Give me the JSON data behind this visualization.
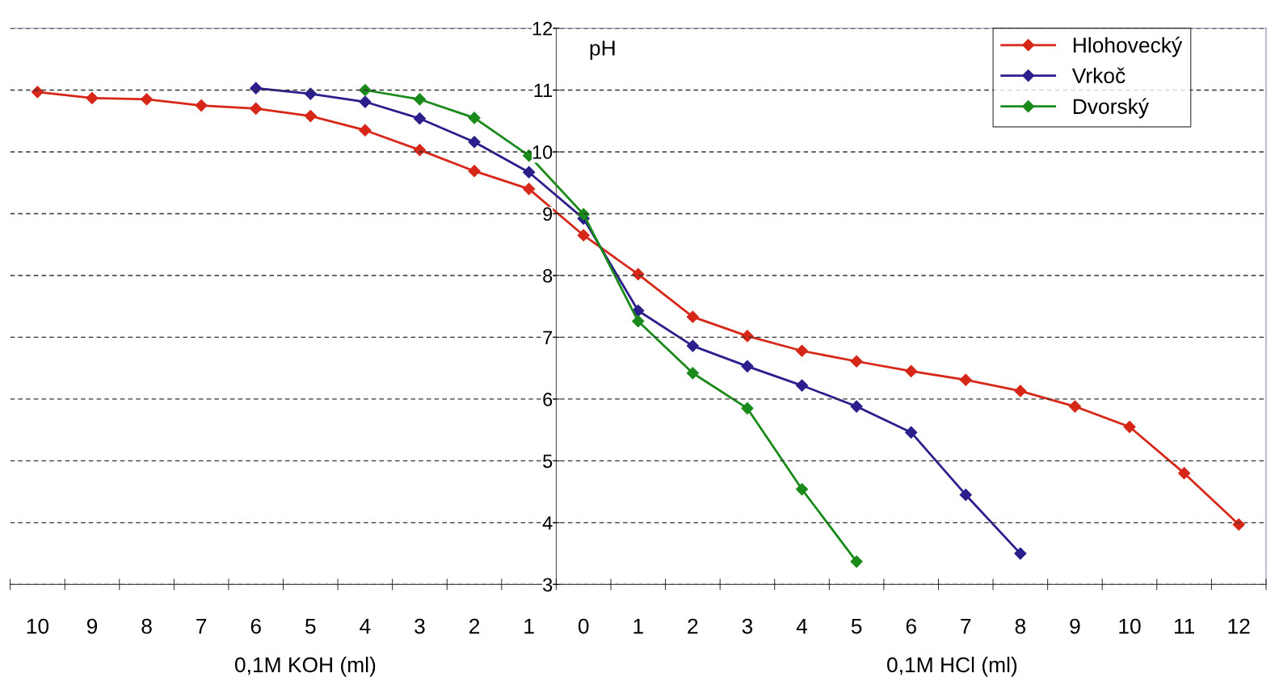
{
  "chart_data": {
    "type": "line",
    "ylabel": "pH",
    "categories": [
      "10",
      "9",
      "8",
      "7",
      "6",
      "5",
      "4",
      "3",
      "2",
      "1",
      "0",
      "1",
      "2",
      "3",
      "4",
      "5",
      "6",
      "7",
      "8",
      "9",
      "10",
      "11",
      "12"
    ],
    "series": [
      {
        "name": "Hlohovecký",
        "color": "#d62718",
        "values": [
          10.97,
          10.87,
          10.85,
          10.75,
          10.7,
          10.58,
          10.35,
          10.03,
          9.69,
          9.4,
          8.65,
          8.02,
          7.33,
          7.02,
          6.78,
          6.61,
          6.45,
          6.31,
          6.13,
          5.88,
          5.55,
          4.8,
          3.97
        ]
      },
      {
        "name": "Vrkoč",
        "color": "#2a1f8c",
        "values": [
          null,
          null,
          null,
          null,
          11.03,
          10.94,
          10.81,
          10.54,
          10.16,
          9.67,
          8.92,
          7.43,
          6.86,
          6.53,
          6.22,
          5.88,
          5.46,
          4.45,
          3.5,
          null,
          null,
          null,
          null
        ]
      },
      {
        "name": "Dvorský",
        "color": "#1a8a1a",
        "values": [
          null,
          null,
          null,
          null,
          null,
          null,
          11.0,
          10.85,
          10.55,
          9.94,
          8.99,
          7.26,
          6.42,
          5.85,
          4.54,
          3.37,
          null,
          null,
          null,
          null,
          null,
          null,
          null
        ]
      }
    ],
    "ylim": [
      3,
      12
    ],
    "yticks": [
      3,
      4,
      5,
      6,
      7,
      8,
      9,
      10,
      11,
      12
    ],
    "grid": "y",
    "legend": "top right",
    "marker": "diamond",
    "line_style": "solid",
    "annotations": [
      "0,1M KOH (ml)",
      "0,1M HCl (ml)"
    ]
  }
}
